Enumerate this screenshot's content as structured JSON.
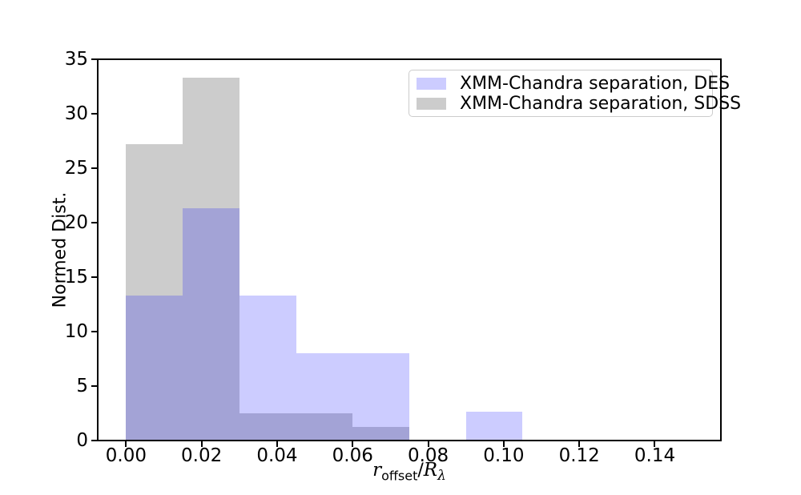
{
  "chart_data": {
    "type": "histogram",
    "title": "",
    "xlabel": "r_offset/R_λ",
    "xlabel_parts": {
      "var1": "r",
      "sub1": "offset",
      "slash": "/",
      "var2": "R",
      "sub2": "λ"
    },
    "ylabel": "Normed Dist.",
    "bin_edges": [
      0.0,
      0.015,
      0.03,
      0.045,
      0.06,
      0.075,
      0.09,
      0.105
    ],
    "series": [
      {
        "name": "XMM-Chandra separation, SDSS",
        "color": "#cccccc",
        "values": [
          27.17,
          33.33,
          2.47,
          2.47,
          1.23,
          0,
          0
        ]
      },
      {
        "name": "XMM-Chandra separation, DES",
        "color": "rgba(0,0,255,0.2)",
        "values": [
          13.33,
          21.33,
          13.33,
          8.0,
          8.0,
          0,
          2.67
        ]
      }
    ],
    "overlap_color_observed": "#a3a3d6",
    "xlim": [
      -0.0075,
      0.1575
    ],
    "ylim": [
      0,
      35
    ],
    "xticks": {
      "values": [
        0.0,
        0.02,
        0.04,
        0.06,
        0.08,
        0.1,
        0.12,
        0.14
      ],
      "labels": [
        "0.00",
        "0.02",
        "0.04",
        "0.06",
        "0.08",
        "0.10",
        "0.12",
        "0.14"
      ]
    },
    "yticks": {
      "values": [
        0,
        5,
        10,
        15,
        20,
        25,
        30,
        35
      ],
      "labels": [
        "0",
        "5",
        "10",
        "15",
        "20",
        "25",
        "30",
        "35"
      ]
    },
    "grid": false,
    "legend_position": "upper right"
  },
  "legend": {
    "entries": [
      {
        "label": "XMM-Chandra separation, DES",
        "series_index": 1
      },
      {
        "label": "XMM-Chandra separation, SDSS",
        "series_index": 0
      }
    ]
  }
}
